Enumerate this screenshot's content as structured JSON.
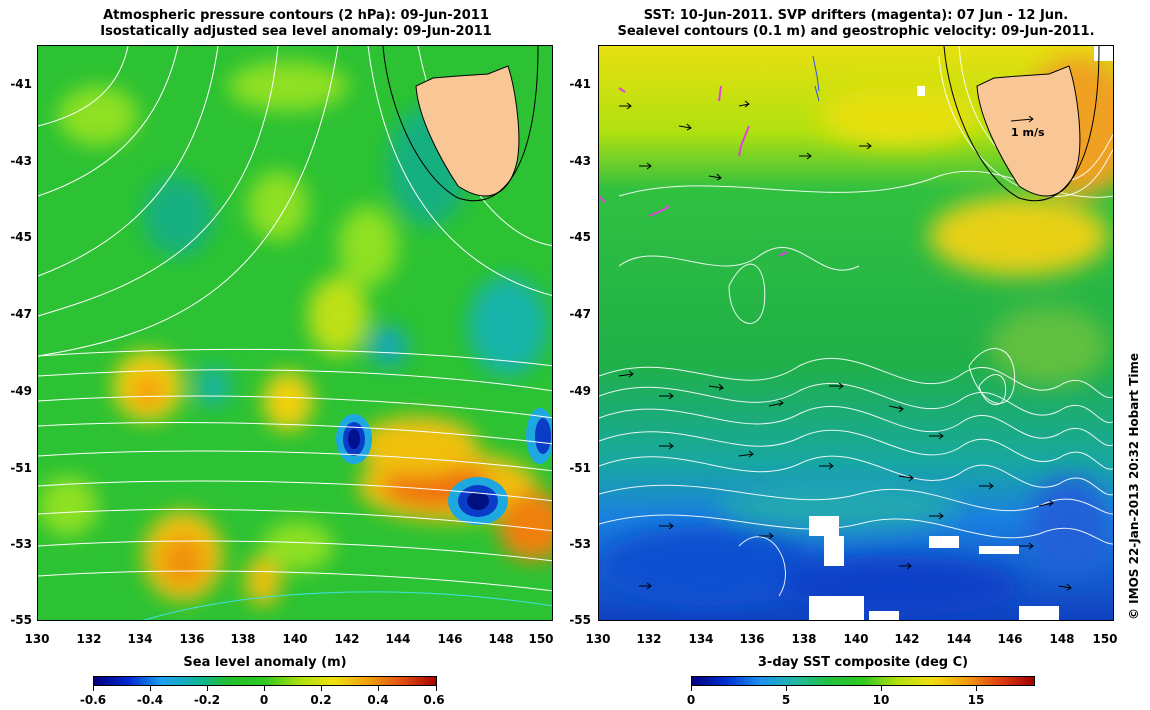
{
  "left_panel": {
    "title_line1": "Atmospheric pressure contours (2 hPa): 09-Jun-2011",
    "title_line2": "Isostatically adjusted sea level anomaly: 09-Jun-2011",
    "x_ticks": [
      "130",
      "132",
      "134",
      "136",
      "138",
      "140",
      "142",
      "144",
      "146",
      "148",
      "150"
    ],
    "y_ticks": [
      "-41",
      "-43",
      "-45",
      "-47",
      "-49",
      "-51",
      "-53",
      "-55"
    ],
    "colorbar_label": "Sea level anomaly (m)",
    "colorbar_ticks": [
      "-0.6",
      "-0.4",
      "-0.2",
      "0",
      "0.2",
      "0.4",
      "0.6"
    ]
  },
  "right_panel": {
    "title_line1": "SST: 10-Jun-2011. SVP drifters (magenta): 07 Jun - 12 Jun.",
    "title_line2": "Sealevel contours (0.1 m) and geostrophic velocity: 09-Jun-2011.",
    "x_ticks": [
      "130",
      "132",
      "134",
      "136",
      "138",
      "140",
      "142",
      "144",
      "146",
      "148",
      "150"
    ],
    "y_ticks": [
      "-41",
      "-43",
      "-45",
      "-47",
      "-49",
      "-51",
      "-53",
      "-55"
    ],
    "velocity_scale_label": "1 m/s",
    "colorbar_label": "3-day SST composite (deg C)",
    "colorbar_ticks": [
      "0",
      "5",
      "10",
      "15"
    ]
  },
  "credit": "© IMOS 22-Jan-2013 20:32 Hobart Time",
  "colors": {
    "land": "#f9c796",
    "slanom_mid": "#22c02a",
    "sst_cold": "#1f4fe0",
    "sst_warm": "#f5a623",
    "drifters": "#e040e0"
  },
  "map_extent": {
    "lon": [
      130,
      150
    ],
    "lat": [
      -55,
      -40
    ]
  }
}
